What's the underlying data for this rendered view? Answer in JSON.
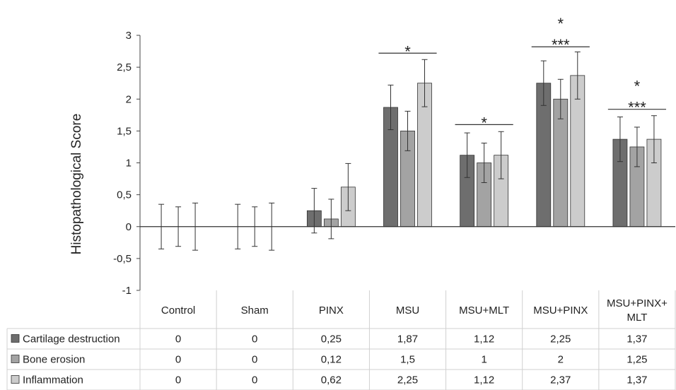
{
  "chart_data": {
    "type": "bar",
    "ylabel": "Histopathological  Score",
    "ylim": [
      -1,
      3
    ],
    "yticks": [
      -1,
      -0.5,
      0,
      0.5,
      1,
      1.5,
      2,
      2.5,
      3
    ],
    "ytick_labels": [
      "-1",
      "-0,5",
      "0",
      "0,5",
      "1",
      "1,5",
      "2",
      "2,5",
      "3"
    ],
    "grid": false,
    "legend": "data-table-rows",
    "categories": [
      [
        "Control"
      ],
      [
        "Sham"
      ],
      [
        "PINX"
      ],
      [
        "MSU"
      ],
      [
        "MSU+MLT"
      ],
      [
        "MSU+PINX"
      ],
      [
        "MSU+PINX+",
        "MLT"
      ]
    ],
    "series": [
      {
        "name": "Cartilage destruction",
        "color": "#6e6e6e",
        "values": [
          0,
          0,
          0.25,
          1.87,
          1.12,
          2.25,
          1.37
        ],
        "errors": [
          0.35,
          0.35,
          0.35,
          0.35,
          0.35,
          0.35,
          0.35
        ],
        "labels": [
          "0",
          "0",
          "0,25",
          "1,87",
          "1,12",
          "2,25",
          "1,37"
        ]
      },
      {
        "name": "Bone erosion",
        "color": "#a3a3a3",
        "values": [
          0,
          0,
          0.12,
          1.5,
          1,
          2,
          1.25
        ],
        "errors": [
          0.31,
          0.31,
          0.31,
          0.31,
          0.31,
          0.31,
          0.31
        ],
        "labels": [
          "0",
          "0",
          "0,12",
          "1,5",
          "1",
          "2",
          "1,25"
        ]
      },
      {
        "name": "Inflammation",
        "color": "#cccccc",
        "values": [
          0,
          0,
          0.62,
          2.25,
          1.12,
          2.37,
          1.37
        ],
        "errors": [
          0.37,
          0.37,
          0.37,
          0.37,
          0.37,
          0.37,
          0.37
        ],
        "labels": [
          "0",
          "0",
          "0,62",
          "2,25",
          "1,12",
          "2,37",
          "1,37"
        ]
      }
    ],
    "annotations": [
      {
        "category_index": 3,
        "lines": [
          "*"
        ],
        "y": 2.72
      },
      {
        "category_index": 4,
        "lines": [
          "*"
        ],
        "y": 1.6
      },
      {
        "category_index": 5,
        "lines": [
          "*",
          "***"
        ],
        "y": 2.82
      },
      {
        "category_index": 6,
        "lines": [
          "*",
          "***"
        ],
        "y": 1.84
      }
    ]
  }
}
